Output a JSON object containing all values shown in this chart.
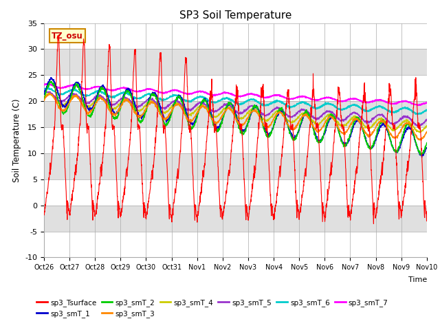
{
  "title": "SP3 Soil Temperature",
  "xlabel": "Time",
  "ylabel": "Soil Temperature (C)",
  "ylim": [
    -10,
    35
  ],
  "xlim": [
    0,
    360
  ],
  "background_color": "#ffffff",
  "plot_bg_color": "#e8e8e8",
  "annotation_text": "TZ_osu",
  "annotation_bg": "#ffffcc",
  "annotation_border": "#cc8800",
  "series_colors": {
    "sp3_Tsurface": "#ff0000",
    "sp3_smT_1": "#0000cc",
    "sp3_smT_2": "#00cc00",
    "sp3_smT_3": "#ff8800",
    "sp3_smT_4": "#cccc00",
    "sp3_smT_5": "#9933cc",
    "sp3_smT_6": "#00cccc",
    "sp3_smT_7": "#ff00ff"
  },
  "x_tick_labels": [
    "Oct 26",
    "Oct 27",
    "Oct 28",
    "Oct 29",
    "Oct 30",
    "Oct 31",
    "Nov 1",
    "Nov 2",
    "Nov 3",
    "Nov 4",
    "Nov 5",
    "Nov 6",
    "Nov 7",
    "Nov 8",
    "Nov 9",
    "Nov 10"
  ],
  "x_tick_positions": [
    0,
    24,
    48,
    72,
    96,
    120,
    144,
    168,
    192,
    216,
    240,
    264,
    288,
    312,
    336,
    360
  ],
  "yticks": [
    -10,
    -5,
    0,
    5,
    10,
    15,
    20,
    25,
    30,
    35
  ],
  "n_points": 2160,
  "figsize": [
    6.4,
    4.8
  ],
  "dpi": 100
}
